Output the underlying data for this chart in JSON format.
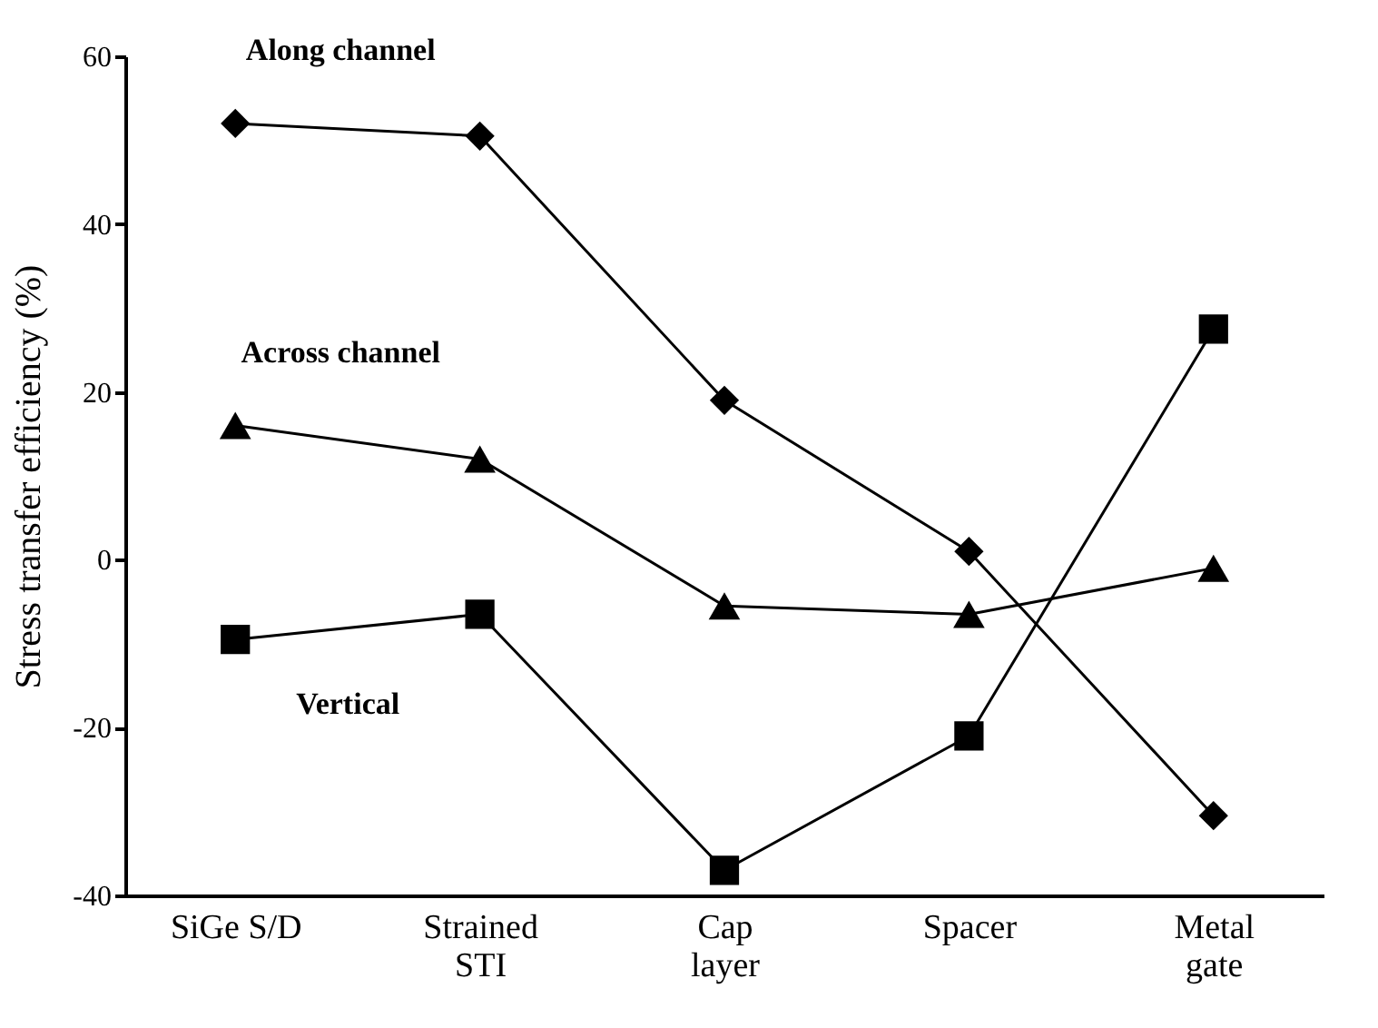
{
  "chart_data": {
    "type": "line",
    "ylabel": "Stress transfer efficiency  (%)",
    "categories": [
      "SiGe S/D",
      "Strained\nSTI",
      "Cap\nlayer",
      "Spacer",
      "Metal\ngate"
    ],
    "series": [
      {
        "name": "Along channel",
        "color": "#000000",
        "marker": "diamond",
        "values": [
          52,
          50.5,
          19,
          1,
          -30.5
        ]
      },
      {
        "name": "Across channel",
        "color": "#000000",
        "marker": "triangle",
        "values": [
          16,
          12,
          -5.5,
          -6.5,
          -1
        ]
      },
      {
        "name": "Vertical",
        "color": "#000000",
        "marker": "square",
        "values": [
          -9.5,
          -6.5,
          -37,
          -21,
          27.5
        ]
      }
    ],
    "ylim": [
      -40,
      60
    ],
    "yticks": [
      -40,
      -20,
      0,
      20,
      40,
      60
    ],
    "line_style": "solid"
  }
}
